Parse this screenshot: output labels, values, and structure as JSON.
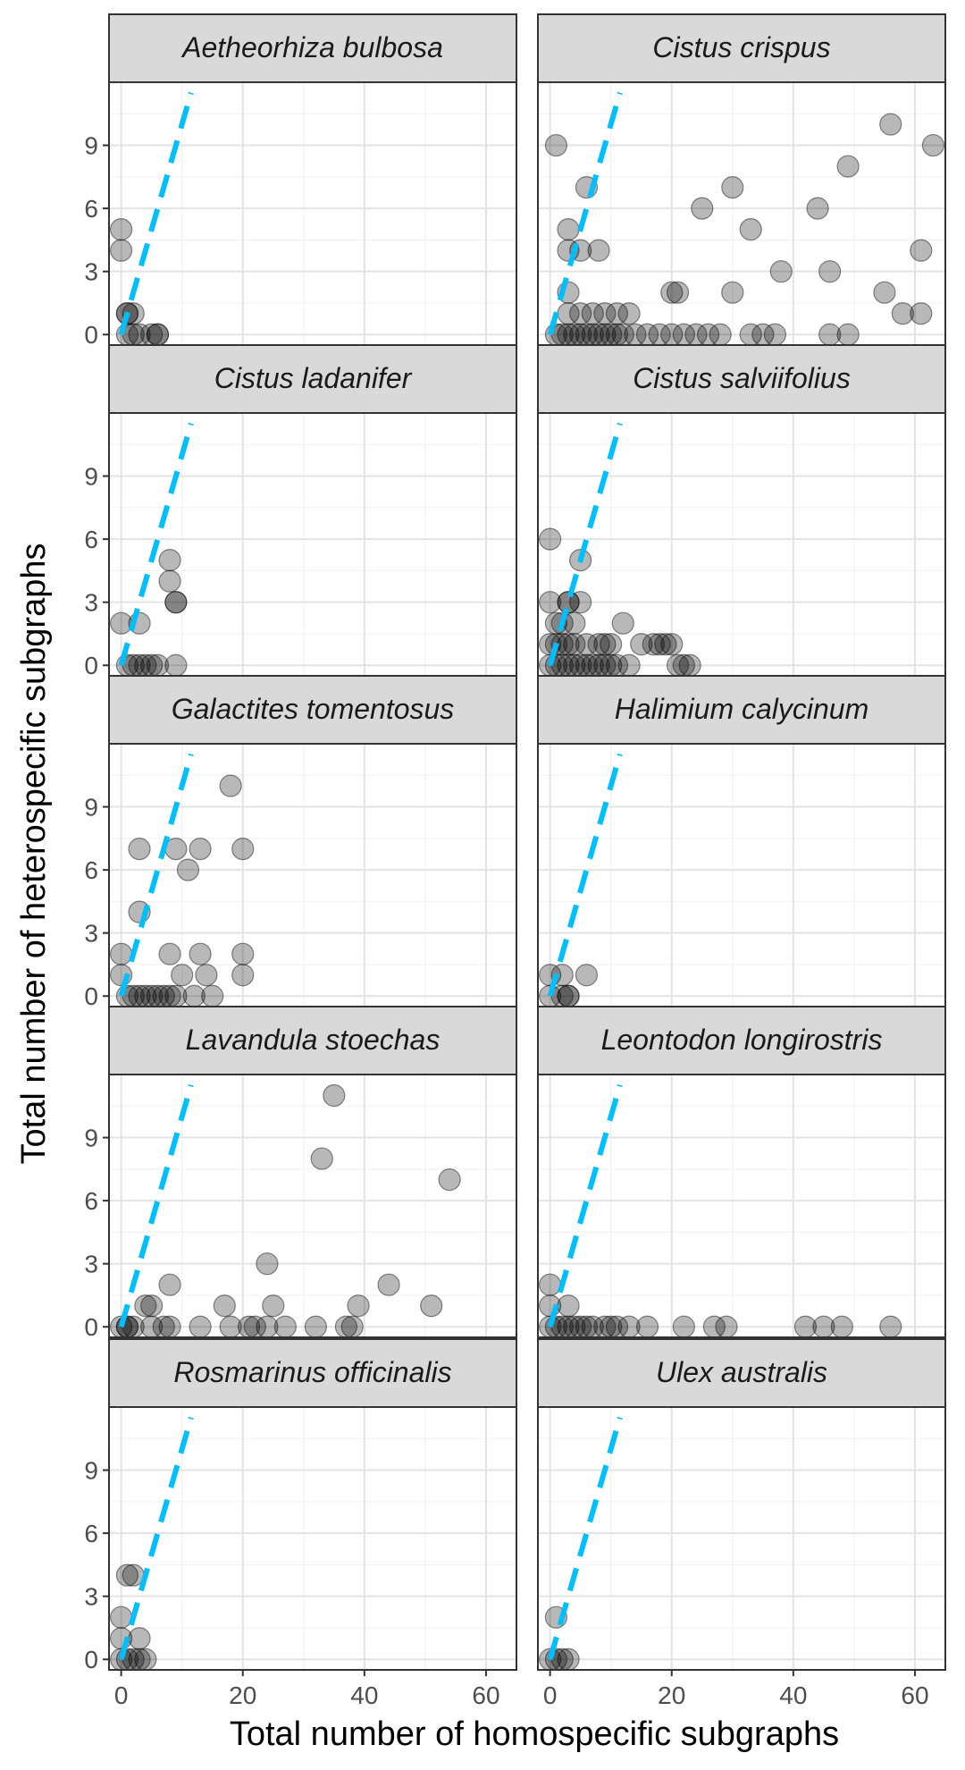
{
  "chart_data": {
    "type": "scatter",
    "layout": "facet-grid 5 rows x 2 columns",
    "xlabel": "Total number of homospecific subgraphs",
    "ylabel": "Total number of heterospecific subgraphs",
    "xlim": [
      -2,
      65
    ],
    "ylim": [
      -0.5,
      12
    ],
    "x_ticks": [
      0,
      20,
      40,
      60
    ],
    "y_ticks": [
      0,
      3,
      6,
      9
    ],
    "grid": true,
    "legend": "none",
    "point_color": "#000000",
    "point_opacity": 0.28,
    "reference_line": {
      "style": "dashed",
      "color": "#00BFFF",
      "x": [
        0,
        11.5
      ],
      "y": [
        0,
        11.5
      ],
      "slope": 1
    },
    "panels": [
      {
        "title": "Aetheorhiza bulbosa",
        "points": [
          [
            0,
            5
          ],
          [
            0,
            4
          ],
          [
            1,
            1
          ],
          [
            1,
            1
          ],
          [
            2,
            1
          ],
          [
            1,
            0
          ],
          [
            2,
            0
          ],
          [
            3,
            0
          ],
          [
            5,
            0
          ],
          [
            6,
            0
          ],
          [
            6,
            0
          ]
        ]
      },
      {
        "title": "Cistus crispus",
        "points": [
          [
            1,
            9
          ],
          [
            3,
            5
          ],
          [
            3,
            4
          ],
          [
            3,
            2
          ],
          [
            5,
            4
          ],
          [
            6,
            7
          ],
          [
            8,
            4
          ],
          [
            1,
            0
          ],
          [
            2,
            0
          ],
          [
            3,
            0
          ],
          [
            4,
            0
          ],
          [
            5,
            0
          ],
          [
            6,
            0
          ],
          [
            7,
            0
          ],
          [
            8,
            0
          ],
          [
            9,
            0
          ],
          [
            10,
            0
          ],
          [
            11,
            0
          ],
          [
            12,
            0
          ],
          [
            14,
            0
          ],
          [
            16,
            0
          ],
          [
            18,
            0
          ],
          [
            20,
            0
          ],
          [
            22,
            0
          ],
          [
            24,
            0
          ],
          [
            26,
            0
          ],
          [
            28,
            0
          ],
          [
            3,
            1
          ],
          [
            5,
            1
          ],
          [
            7,
            1
          ],
          [
            9,
            1
          ],
          [
            11,
            1
          ],
          [
            13,
            1
          ],
          [
            20,
            2
          ],
          [
            21,
            2
          ],
          [
            25,
            6
          ],
          [
            30,
            7
          ],
          [
            30,
            2
          ],
          [
            33,
            5
          ],
          [
            33,
            0
          ],
          [
            35,
            0
          ],
          [
            37,
            0
          ],
          [
            38,
            3
          ],
          [
            44,
            6
          ],
          [
            46,
            3
          ],
          [
            46,
            0
          ],
          [
            49,
            8
          ],
          [
            49,
            0
          ],
          [
            56,
            10
          ],
          [
            55,
            2
          ],
          [
            58,
            1
          ],
          [
            61,
            4
          ],
          [
            61,
            1
          ],
          [
            63,
            9
          ]
        ]
      },
      {
        "title": "Cistus ladanifer",
        "points": [
          [
            0,
            2
          ],
          [
            3,
            2
          ],
          [
            1,
            0
          ],
          [
            2,
            0
          ],
          [
            3,
            0
          ],
          [
            4,
            0
          ],
          [
            5,
            0
          ],
          [
            6,
            0
          ],
          [
            8,
            5
          ],
          [
            8,
            4
          ],
          [
            9,
            3
          ],
          [
            9,
            3
          ],
          [
            9,
            0
          ]
        ]
      },
      {
        "title": "Cistus salviifolius",
        "points": [
          [
            0,
            6
          ],
          [
            0,
            3
          ],
          [
            0,
            1
          ],
          [
            0,
            0
          ],
          [
            1,
            0
          ],
          [
            1,
            1
          ],
          [
            1,
            2
          ],
          [
            2,
            0
          ],
          [
            2,
            1
          ],
          [
            2,
            2
          ],
          [
            3,
            0
          ],
          [
            3,
            1
          ],
          [
            3,
            3
          ],
          [
            3,
            3
          ],
          [
            4,
            0
          ],
          [
            4,
            1
          ],
          [
            4,
            2
          ],
          [
            5,
            5
          ],
          [
            5,
            3
          ],
          [
            5,
            0
          ],
          [
            6,
            0
          ],
          [
            6,
            1
          ],
          [
            7,
            0
          ],
          [
            8,
            0
          ],
          [
            8,
            1
          ],
          [
            9,
            0
          ],
          [
            9,
            1
          ],
          [
            10,
            1
          ],
          [
            10,
            0
          ],
          [
            11,
            0
          ],
          [
            12,
            2
          ],
          [
            13,
            0
          ],
          [
            15,
            1
          ],
          [
            17,
            1
          ],
          [
            18,
            1
          ],
          [
            19,
            1
          ],
          [
            20,
            1
          ],
          [
            21,
            0
          ],
          [
            22,
            0
          ],
          [
            23,
            0
          ]
        ]
      },
      {
        "title": "Galactites tomentosus",
        "points": [
          [
            0,
            2
          ],
          [
            0,
            1
          ],
          [
            1,
            0
          ],
          [
            2,
            0
          ],
          [
            3,
            0
          ],
          [
            3,
            7
          ],
          [
            3,
            4
          ],
          [
            4,
            0
          ],
          [
            5,
            0
          ],
          [
            6,
            0
          ],
          [
            7,
            0
          ],
          [
            8,
            0
          ],
          [
            8,
            2
          ],
          [
            9,
            0
          ],
          [
            9,
            7
          ],
          [
            10,
            1
          ],
          [
            11,
            6
          ],
          [
            12,
            0
          ],
          [
            13,
            7
          ],
          [
            13,
            2
          ],
          [
            14,
            1
          ],
          [
            15,
            0
          ],
          [
            18,
            10
          ],
          [
            20,
            7
          ],
          [
            20,
            2
          ],
          [
            20,
            1
          ]
        ]
      },
      {
        "title": "Halimium calycinum",
        "points": [
          [
            0,
            1
          ],
          [
            0,
            0
          ],
          [
            2,
            0
          ],
          [
            2,
            1
          ],
          [
            3,
            0
          ],
          [
            3,
            0
          ],
          [
            6,
            1
          ]
        ]
      },
      {
        "title": "Lavandula stoechas",
        "points": [
          [
            0,
            0
          ],
          [
            1,
            0
          ],
          [
            1,
            0
          ],
          [
            2,
            0
          ],
          [
            4,
            1
          ],
          [
            5,
            1
          ],
          [
            5,
            0
          ],
          [
            7,
            0
          ],
          [
            8,
            2
          ],
          [
            8,
            0
          ],
          [
            13,
            0
          ],
          [
            17,
            1
          ],
          [
            18,
            0
          ],
          [
            21,
            0
          ],
          [
            22,
            0
          ],
          [
            24,
            3
          ],
          [
            24,
            0
          ],
          [
            25,
            1
          ],
          [
            27,
            0
          ],
          [
            32,
            0
          ],
          [
            33,
            8
          ],
          [
            35,
            11
          ],
          [
            37,
            0
          ],
          [
            38,
            0
          ],
          [
            39,
            1
          ],
          [
            44,
            2
          ],
          [
            51,
            1
          ],
          [
            54,
            7
          ]
        ]
      },
      {
        "title": "Leontodon longirostris",
        "points": [
          [
            0,
            2
          ],
          [
            0,
            1
          ],
          [
            0,
            0
          ],
          [
            1,
            0
          ],
          [
            2,
            0
          ],
          [
            3,
            1
          ],
          [
            3,
            0
          ],
          [
            4,
            0
          ],
          [
            5,
            0
          ],
          [
            6,
            0
          ],
          [
            7,
            0
          ],
          [
            9,
            0
          ],
          [
            10,
            0
          ],
          [
            11,
            0
          ],
          [
            13,
            0
          ],
          [
            16,
            0
          ],
          [
            22,
            0
          ],
          [
            27,
            0
          ],
          [
            29,
            0
          ],
          [
            42,
            0
          ],
          [
            45,
            0
          ],
          [
            48,
            0
          ],
          [
            56,
            0
          ]
        ]
      },
      {
        "title": "Rosmarinus officinalis",
        "points": [
          [
            0,
            2
          ],
          [
            0,
            1
          ],
          [
            0,
            0
          ],
          [
            1,
            4
          ],
          [
            1,
            0
          ],
          [
            2,
            4
          ],
          [
            2,
            0
          ],
          [
            3,
            1
          ],
          [
            3,
            0
          ],
          [
            4,
            0
          ]
        ]
      },
      {
        "title": "Ulex australis",
        "points": [
          [
            0,
            0
          ],
          [
            1,
            2
          ],
          [
            1,
            0
          ],
          [
            2,
            0
          ],
          [
            3,
            0
          ]
        ]
      }
    ]
  }
}
